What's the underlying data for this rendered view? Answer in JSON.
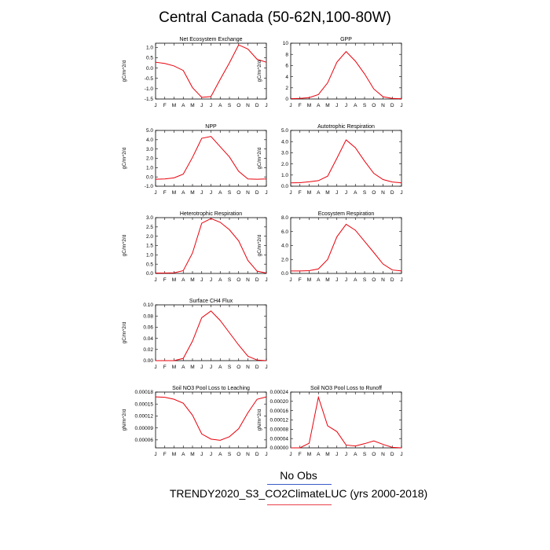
{
  "title": "Central Canada (50-62N,100-80W)",
  "legend": {
    "obs_label": "No Obs",
    "model_label": "TRENDY2020_S3_CO2ClimateLUC (yrs 2000-2018)",
    "obs_color": "#3b5bc8",
    "model_color": "#e8404a"
  },
  "line_color": "#e8000b",
  "chart_data": [
    {
      "type": "line",
      "title": "Net Ecosystem Exchange",
      "ylabel": "gC/m^2/d",
      "ylim": [
        -1.5,
        1.2
      ],
      "yticks": [
        -1.5,
        -1.0,
        -0.5,
        0.0,
        0.5,
        1.0
      ],
      "ytick_labels": [
        "-1.5",
        "-1.0",
        "-0.5",
        "0.0",
        "0.5",
        "1.0"
      ],
      "categories": [
        "J",
        "F",
        "M",
        "A",
        "M",
        "J",
        "J",
        "A",
        "S",
        "O",
        "N",
        "D",
        "J"
      ],
      "values": [
        0.28,
        0.22,
        0.1,
        -0.12,
        -0.95,
        -1.42,
        -1.38,
        -0.55,
        0.25,
        1.12,
        0.92,
        0.42,
        0.28
      ]
    },
    {
      "type": "line",
      "title": "GPP",
      "ylabel": "gC/m^2/d",
      "ylim": [
        0,
        10
      ],
      "yticks": [
        0,
        2,
        4,
        6,
        8,
        10
      ],
      "ytick_labels": [
        "0",
        "2",
        "4",
        "6",
        "8",
        "10"
      ],
      "categories": [
        "J",
        "F",
        "M",
        "A",
        "M",
        "J",
        "J",
        "A",
        "S",
        "O",
        "N",
        "D",
        "J"
      ],
      "values": [
        0.05,
        0.1,
        0.25,
        0.8,
        2.9,
        6.6,
        8.5,
        6.8,
        4.5,
        1.8,
        0.4,
        0.1,
        0.05
      ]
    },
    {
      "type": "line",
      "title": "NPP",
      "ylabel": "gC/m^2/d",
      "ylim": [
        -1,
        5
      ],
      "yticks": [
        -1,
        0,
        1,
        2,
        3,
        4,
        5
      ],
      "ytick_labels": [
        "-1.0",
        "0.0",
        "1.0",
        "2.0",
        "3.0",
        "4.0",
        "5.0"
      ],
      "categories": [
        "J",
        "F",
        "M",
        "A",
        "M",
        "J",
        "J",
        "A",
        "S",
        "O",
        "N",
        "D",
        "J"
      ],
      "values": [
        -0.25,
        -0.22,
        -0.1,
        0.3,
        2.1,
        4.15,
        4.35,
        3.25,
        2.15,
        0.6,
        -0.22,
        -0.25,
        -0.22
      ]
    },
    {
      "type": "line",
      "title": "Autotrophic Respiration",
      "ylabel": "gC/m^2/d",
      "ylim": [
        0,
        5
      ],
      "yticks": [
        0,
        1,
        2,
        3,
        4,
        5
      ],
      "ytick_labels": [
        "0.0",
        "1.0",
        "2.0",
        "3.0",
        "4.0",
        "5.0"
      ],
      "categories": [
        "J",
        "F",
        "M",
        "A",
        "M",
        "J",
        "J",
        "A",
        "S",
        "O",
        "N",
        "D",
        "J"
      ],
      "values": [
        0.3,
        0.32,
        0.4,
        0.5,
        0.9,
        2.5,
        4.15,
        3.45,
        2.25,
        1.15,
        0.6,
        0.38,
        0.3
      ]
    },
    {
      "type": "line",
      "title": "Heterotrophic Respiration",
      "ylabel": "gC/m^2/d",
      "ylim": [
        0,
        3
      ],
      "yticks": [
        0,
        0.5,
        1,
        1.5,
        2,
        2.5,
        3
      ],
      "ytick_labels": [
        "0.0",
        "0.5",
        "1.0",
        "1.5",
        "2.0",
        "2.5",
        "3.0"
      ],
      "categories": [
        "J",
        "F",
        "M",
        "A",
        "M",
        "J",
        "J",
        "A",
        "S",
        "O",
        "N",
        "D",
        "J"
      ],
      "values": [
        0.02,
        0.02,
        0.03,
        0.15,
        1.1,
        2.7,
        2.95,
        2.75,
        2.35,
        1.75,
        0.7,
        0.12,
        0.02
      ]
    },
    {
      "type": "line",
      "title": "Ecosystem Respiration",
      "ylabel": "gC/m^2/d",
      "ylim": [
        0,
        8
      ],
      "yticks": [
        0,
        2,
        4,
        6,
        8
      ],
      "ytick_labels": [
        "0.0",
        "2.0",
        "4.0",
        "6.0",
        "8.0"
      ],
      "categories": [
        "J",
        "F",
        "M",
        "A",
        "M",
        "J",
        "J",
        "A",
        "S",
        "O",
        "N",
        "D",
        "J"
      ],
      "values": [
        0.35,
        0.35,
        0.4,
        0.65,
        2.0,
        5.25,
        7.05,
        6.2,
        4.6,
        3.0,
        1.35,
        0.5,
        0.35
      ]
    },
    {
      "type": "line",
      "title": "Surface CH4 Flux",
      "ylabel": "gC/m^2/d",
      "ylim": [
        0,
        0.1
      ],
      "yticks": [
        0,
        0.02,
        0.04,
        0.06,
        0.08,
        0.1
      ],
      "ytick_labels": [
        "0.00",
        "0.02",
        "0.04",
        "0.06",
        "0.08",
        "0.10"
      ],
      "categories": [
        "J",
        "F",
        "M",
        "A",
        "M",
        "J",
        "J",
        "A",
        "S",
        "O",
        "N",
        "D",
        "J"
      ],
      "values": [
        0.0,
        0.0,
        0.0,
        0.004,
        0.035,
        0.077,
        0.089,
        0.072,
        0.05,
        0.028,
        0.008,
        0.001,
        0.0
      ]
    },
    {
      "type": "line",
      "title": "Soil NO3 Pool Loss to Leaching",
      "ylabel": "gN/m^2/d",
      "ylim": [
        4e-05,
        0.00018
      ],
      "yticks": [
        6e-05,
        9e-05,
        0.00012,
        0.00015,
        0.00018
      ],
      "ytick_labels": [
        "0.00006",
        "0.00009",
        "0.00012",
        "0.00015",
        "0.00018"
      ],
      "categories": [
        "J",
        "F",
        "M",
        "A",
        "M",
        "J",
        "J",
        "A",
        "S",
        "O",
        "N",
        "D",
        "J"
      ],
      "values": [
        0.000168,
        0.000167,
        0.000162,
        0.000152,
        0.000122,
        7.5e-05,
        6.2e-05,
        5.9e-05,
        6.8e-05,
        8.8e-05,
        0.000128,
        0.000162,
        0.000168
      ]
    },
    {
      "type": "line",
      "title": "Soil NO3 Pool Loss to Runoff",
      "ylabel": "gN/m^2/d",
      "ylim": [
        0,
        0.00024
      ],
      "yticks": [
        0,
        4e-05,
        8e-05,
        0.00012,
        0.00016,
        0.0002,
        0.00024
      ],
      "ytick_labels": [
        "0.00000",
        "0.00004",
        "0.00008",
        "0.00012",
        "0.00016",
        "0.00020",
        "0.00024"
      ],
      "categories": [
        "J",
        "F",
        "M",
        "A",
        "M",
        "J",
        "J",
        "A",
        "S",
        "O",
        "N",
        "D",
        "J"
      ],
      "values": [
        0.0,
        0.0,
        2e-05,
        0.000218,
        9.5e-05,
        7e-05,
        1.2e-05,
        8e-06,
        1.8e-05,
        3e-05,
        1.5e-05,
        2e-06,
        0.0
      ]
    }
  ]
}
